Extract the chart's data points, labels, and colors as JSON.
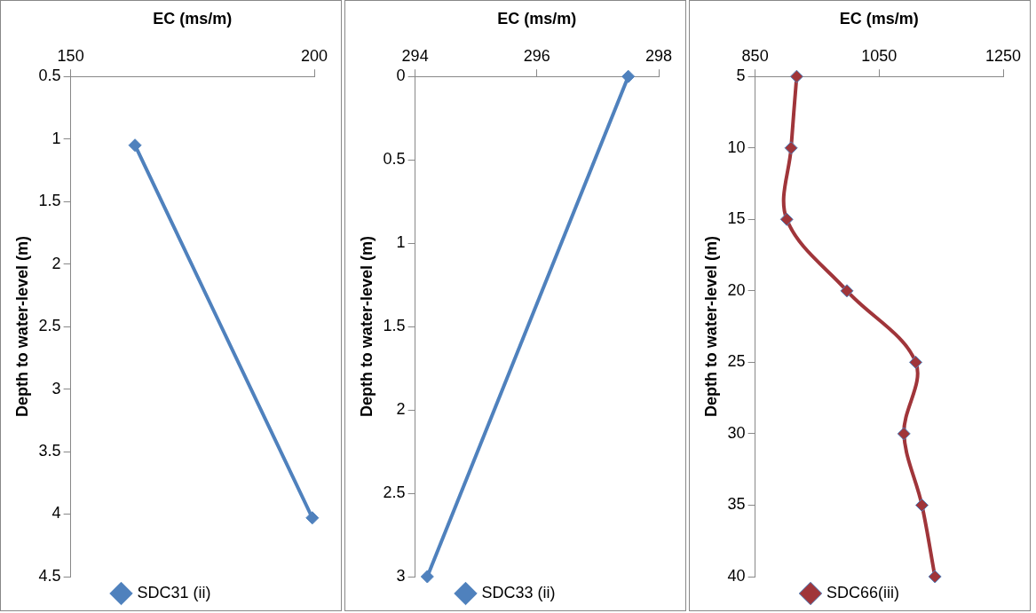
{
  "chart_data": [
    {
      "type": "line",
      "xlabel": "EC (ms/m)",
      "ylabel": "Depth to water-level (m)",
      "xlim": [
        150,
        200
      ],
      "xticks": [
        150,
        200
      ],
      "ylim": [
        4.5,
        0.5
      ],
      "yticks": [
        0.5,
        1,
        1.5,
        2,
        2.5,
        3,
        3.5,
        4,
        4.5
      ],
      "marker": "diamond",
      "legend": "bottom",
      "grid": false,
      "series": [
        {
          "name": "SDC31 (ii)",
          "color": "#4f81bd",
          "x": [
            163.2,
            199.6
          ],
          "values": [
            1.05,
            4.03
          ]
        }
      ]
    },
    {
      "type": "line",
      "xlabel": "EC (ms/m)",
      "ylabel": "Depth to water-level (m)",
      "xlim": [
        294,
        298
      ],
      "xticks": [
        294,
        296,
        298
      ],
      "ylim": [
        3,
        0
      ],
      "yticks": [
        0,
        0.5,
        1,
        1.5,
        2,
        2.5,
        3
      ],
      "marker": "diamond",
      "legend": "bottom",
      "grid": false,
      "series": [
        {
          "name": "SDC33 (ii)",
          "color": "#4f81bd",
          "x": [
            297.5,
            294.2
          ],
          "values": [
            0,
            3
          ]
        }
      ]
    },
    {
      "type": "line",
      "xlabel": "EC (ms/m)",
      "ylabel": "Depth to water-level (m)",
      "xlim": [
        850,
        1250
      ],
      "xticks": [
        850,
        1050,
        1250
      ],
      "ylim": [
        40,
        5
      ],
      "yticks": [
        5,
        10,
        15,
        20,
        25,
        30,
        35,
        40
      ],
      "marker": "diamond",
      "legend": "bottom",
      "grid": false,
      "series": [
        {
          "name": "SDC66(iii)",
          "color": "#a0353a",
          "x": [
            917,
            908,
            901,
            998,
            1109,
            1090,
            1119,
            1140
          ],
          "values": [
            5,
            10,
            15,
            20,
            25,
            30,
            35,
            40
          ]
        }
      ]
    }
  ]
}
